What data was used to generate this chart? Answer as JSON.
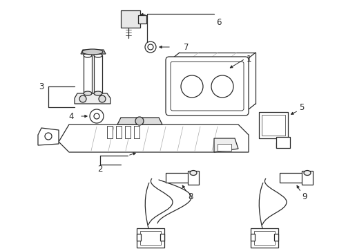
{
  "bg_color": "#ffffff",
  "line_color": "#2a2a2a",
  "lw": 0.9,
  "figsize": [
    4.89,
    3.6
  ],
  "dpi": 100,
  "label_fontsize": 8.5
}
